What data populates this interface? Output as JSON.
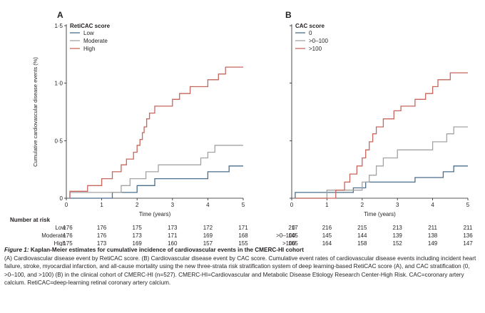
{
  "chart_data": [
    {
      "type": "line",
      "panel": "A",
      "xlabel": "Time (years)",
      "ylabel": "Cumulative cardiovascular disease events (%)",
      "xlim": [
        0,
        5
      ],
      "ylim": [
        0,
        1.5
      ],
      "xticks": [
        "0",
        "1",
        "2",
        "3",
        "4",
        "5"
      ],
      "yticks": [
        "0",
        "0·5",
        "1·0",
        "1·5"
      ],
      "legend_title": "RetiCAC score",
      "legend_position": "top-left",
      "series": [
        {
          "name": "Low",
          "color": "#4b6e8a",
          "points": [
            [
              0.1,
              0
            ],
            [
              1.3,
              0
            ],
            [
              1.3,
              0.05
            ],
            [
              2.0,
              0.05
            ],
            [
              2.0,
              0.11
            ],
            [
              2.5,
              0.11
            ],
            [
              2.5,
              0.17
            ],
            [
              4.0,
              0.17
            ],
            [
              4.0,
              0.23
            ],
            [
              4.6,
              0.23
            ],
            [
              4.6,
              0.28
            ],
            [
              5.0,
              0.28
            ]
          ]
        },
        {
          "name": "Moderate",
          "color": "#a3a3a3",
          "points": [
            [
              0.1,
              0
            ],
            [
              0.1,
              0.05
            ],
            [
              1.55,
              0.05
            ],
            [
              1.55,
              0.11
            ],
            [
              1.8,
              0.11
            ],
            [
              1.8,
              0.17
            ],
            [
              2.25,
              0.17
            ],
            [
              2.25,
              0.23
            ],
            [
              2.6,
              0.23
            ],
            [
              2.6,
              0.29
            ],
            [
              3.8,
              0.29
            ],
            [
              3.8,
              0.35
            ],
            [
              4.0,
              0.35
            ],
            [
              4.0,
              0.4
            ],
            [
              4.2,
              0.4
            ],
            [
              4.2,
              0.46
            ],
            [
              5.0,
              0.46
            ]
          ]
        },
        {
          "name": "High",
          "color": "#c7665c",
          "points": [
            [
              0.1,
              0
            ],
            [
              0.1,
              0.06
            ],
            [
              0.6,
              0.06
            ],
            [
              0.6,
              0.11
            ],
            [
              1.0,
              0.11
            ],
            [
              1.0,
              0.17
            ],
            [
              1.3,
              0.17
            ],
            [
              1.3,
              0.23
            ],
            [
              1.55,
              0.23
            ],
            [
              1.55,
              0.29
            ],
            [
              1.7,
              0.29
            ],
            [
              1.7,
              0.34
            ],
            [
              1.9,
              0.34
            ],
            [
              1.9,
              0.4
            ],
            [
              2.0,
              0.4
            ],
            [
              2.0,
              0.46
            ],
            [
              2.08,
              0.46
            ],
            [
              2.08,
              0.51
            ],
            [
              2.15,
              0.51
            ],
            [
              2.15,
              0.57
            ],
            [
              2.2,
              0.57
            ],
            [
              2.2,
              0.62
            ],
            [
              2.27,
              0.62
            ],
            [
              2.27,
              0.69
            ],
            [
              2.35,
              0.69
            ],
            [
              2.35,
              0.74
            ],
            [
              2.5,
              0.74
            ],
            [
              2.5,
              0.8
            ],
            [
              3.0,
              0.8
            ],
            [
              3.0,
              0.86
            ],
            [
              3.2,
              0.86
            ],
            [
              3.2,
              0.91
            ],
            [
              3.5,
              0.91
            ],
            [
              3.5,
              0.97
            ],
            [
              4.0,
              0.97
            ],
            [
              4.0,
              1.03
            ],
            [
              4.3,
              1.03
            ],
            [
              4.3,
              1.08
            ],
            [
              4.5,
              1.08
            ],
            [
              4.5,
              1.14
            ],
            [
              5.0,
              1.14
            ]
          ]
        }
      ],
      "at_risk": {
        "label": "Number at risk",
        "rows": [
          {
            "group": "Low",
            "values": [
              "176",
              "176",
              "175",
              "173",
              "172",
              "171"
            ]
          },
          {
            "group": "Moderate",
            "values": [
              "176",
              "176",
              "173",
              "171",
              "169",
              "168"
            ]
          },
          {
            "group": "High",
            "values": [
              "175",
              "173",
              "169",
              "160",
              "157",
              "155"
            ]
          }
        ]
      }
    },
    {
      "type": "line",
      "panel": "B",
      "xlabel": "Time (years)",
      "xlim": [
        0,
        5
      ],
      "ylim": [
        0,
        1.5
      ],
      "xticks": [
        "0",
        "1",
        "2",
        "3",
        "4",
        "5"
      ],
      "legend_title": "CAC score",
      "legend_position": "top-left",
      "series": [
        {
          "name": "0",
          "color": "#4b6e8a",
          "points": [
            [
              0.1,
              0
            ],
            [
              0.1,
              0.05
            ],
            [
              1.75,
              0.05
            ],
            [
              1.75,
              0.09
            ],
            [
              2.1,
              0.09
            ],
            [
              2.1,
              0.14
            ],
            [
              3.5,
              0.14
            ],
            [
              3.5,
              0.18
            ],
            [
              4.3,
              0.18
            ],
            [
              4.3,
              0.23
            ],
            [
              4.6,
              0.23
            ],
            [
              4.6,
              0.28
            ],
            [
              5.0,
              0.28
            ]
          ]
        },
        {
          "name": ">0–100",
          "color": "#a3a3a3",
          "points": [
            [
              0.1,
              0
            ],
            [
              1.0,
              0
            ],
            [
              1.0,
              0.07
            ],
            [
              2.0,
              0.07
            ],
            [
              2.0,
              0.14
            ],
            [
              2.2,
              0.14
            ],
            [
              2.2,
              0.2
            ],
            [
              2.4,
              0.2
            ],
            [
              2.4,
              0.28
            ],
            [
              2.6,
              0.28
            ],
            [
              2.6,
              0.35
            ],
            [
              3.0,
              0.35
            ],
            [
              3.0,
              0.42
            ],
            [
              4.0,
              0.42
            ],
            [
              4.0,
              0.49
            ],
            [
              4.4,
              0.49
            ],
            [
              4.4,
              0.56
            ],
            [
              4.6,
              0.56
            ],
            [
              4.6,
              0.62
            ],
            [
              5.0,
              0.62
            ]
          ]
        },
        {
          "name": ">100",
          "color": "#c7665c",
          "points": [
            [
              0.1,
              0
            ],
            [
              1.25,
              0
            ],
            [
              1.25,
              0.07
            ],
            [
              1.5,
              0.07
            ],
            [
              1.5,
              0.14
            ],
            [
              1.65,
              0.14
            ],
            [
              1.65,
              0.21
            ],
            [
              1.85,
              0.21
            ],
            [
              1.85,
              0.28
            ],
            [
              2.0,
              0.28
            ],
            [
              2.0,
              0.35
            ],
            [
              2.1,
              0.35
            ],
            [
              2.1,
              0.42
            ],
            [
              2.2,
              0.42
            ],
            [
              2.2,
              0.49
            ],
            [
              2.3,
              0.49
            ],
            [
              2.3,
              0.56
            ],
            [
              2.4,
              0.56
            ],
            [
              2.4,
              0.62
            ],
            [
              2.6,
              0.62
            ],
            [
              2.6,
              0.69
            ],
            [
              2.9,
              0.69
            ],
            [
              2.9,
              0.76
            ],
            [
              3.1,
              0.76
            ],
            [
              3.1,
              0.8
            ],
            [
              3.5,
              0.8
            ],
            [
              3.5,
              0.86
            ],
            [
              3.8,
              0.86
            ],
            [
              3.8,
              0.91
            ],
            [
              4.0,
              0.91
            ],
            [
              4.0,
              0.97
            ],
            [
              4.15,
              0.97
            ],
            [
              4.15,
              1.03
            ],
            [
              4.5,
              1.03
            ],
            [
              4.5,
              1.09
            ],
            [
              5.0,
              1.09
            ]
          ]
        }
      ],
      "at_risk": {
        "rows": [
          {
            "group": "0",
            "values": [
              "217",
              "216",
              "215",
              "213",
              "211",
              "211"
            ]
          },
          {
            "group": ">0–100",
            "values": [
              "145",
              "145",
              "144",
              "139",
              "138",
              "136"
            ]
          },
          {
            "group": ">100",
            "values": [
              "165",
              "164",
              "158",
              "152",
              "149",
              "147"
            ]
          }
        ]
      }
    }
  ],
  "caption": {
    "label": "Figure 1:",
    "title": "Kaplan-Meier estimates for cumulative incidence of cardiovascular events in the CMERC-HI cohort",
    "body": "(A) Cardiovascular disease event by RetiCAC score. (B) Cardiovascular disease event by CAC score. Cumulative event rates of cardiovascular disease events including incident heart failure, stroke, myocardial infarction, and all-cause mortality using the new three-strata risk stratification system of deep learning-based RetiCAC score (A), and CAC stratification (0, >0–100, and >100) (B) in the clinical cohort of CMERC-HI (n=527). CMERC-HI=Cardiovascular and Metabolic Disease Etiology Research Center-High Risk. CAC=coronary artery calcium. RetiCAC=deep-learning retinal coronary artery calcium."
  }
}
